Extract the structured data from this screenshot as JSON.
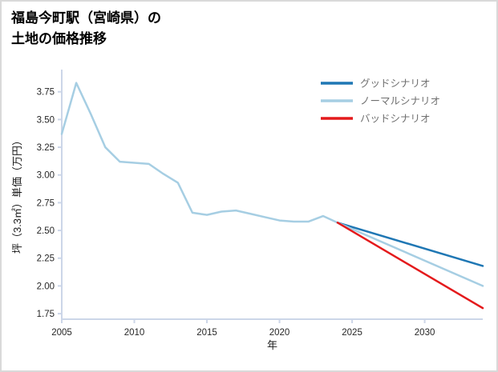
{
  "title": {
    "line1": "福島今町駅（宮崎県）の",
    "line2": "土地の価格推移"
  },
  "colors": {
    "background": "#ffffff",
    "border": "#d9d9d9",
    "axis": "#ccd6e8",
    "tick_text": "#262626",
    "axis_label_text": "#1a1a1a",
    "legend_text": "#707070",
    "good": "#1f77b4",
    "normal": "#a6cee3",
    "bad": "#e41a1c"
  },
  "chart_data": {
    "type": "line",
    "title": "福島今町駅（宮崎県）の土地の価格推移",
    "xlabel": "年",
    "ylabel": "坪（3.3㎡）単価（万円）",
    "xlim": [
      2005,
      2034
    ],
    "ylim": [
      1.7,
      3.95
    ],
    "xticks": [
      2005,
      2010,
      2015,
      2020,
      2025,
      2030
    ],
    "yticks": [
      1.75,
      2.0,
      2.25,
      2.5,
      2.75,
      3.0,
      3.25,
      3.5,
      3.75
    ],
    "grid": false,
    "legend_position": "top-right",
    "series": [
      {
        "name": "historical",
        "color": "#a6cee3",
        "x": [
          2005,
          2006,
          2007,
          2008,
          2009,
          2010,
          2011,
          2012,
          2013,
          2014,
          2015,
          2016,
          2017,
          2018,
          2019,
          2020,
          2021,
          2022,
          2023,
          2024
        ],
        "y": [
          3.37,
          3.83,
          3.55,
          3.25,
          3.12,
          3.11,
          3.1,
          3.01,
          2.93,
          2.66,
          2.64,
          2.67,
          2.68,
          2.65,
          2.62,
          2.59,
          2.58,
          2.58,
          2.63,
          2.57
        ]
      },
      {
        "name": "グッドシナリオ",
        "color": "#1f77b4",
        "x": [
          2024,
          2034
        ],
        "y": [
          2.57,
          2.18
        ]
      },
      {
        "name": "ノーマルシナリオ",
        "color": "#a6cee3",
        "x": [
          2024,
          2034
        ],
        "y": [
          2.57,
          2.0
        ]
      },
      {
        "name": "バッドシナリオ",
        "color": "#e41a1c",
        "x": [
          2024,
          2034
        ],
        "y": [
          2.57,
          1.8
        ]
      }
    ],
    "legend": [
      {
        "label": "グッドシナリオ",
        "color": "#1f77b4"
      },
      {
        "label": "ノーマルシナリオ",
        "color": "#a6cee3"
      },
      {
        "label": "バッドシナリオ",
        "color": "#e41a1c"
      }
    ]
  }
}
